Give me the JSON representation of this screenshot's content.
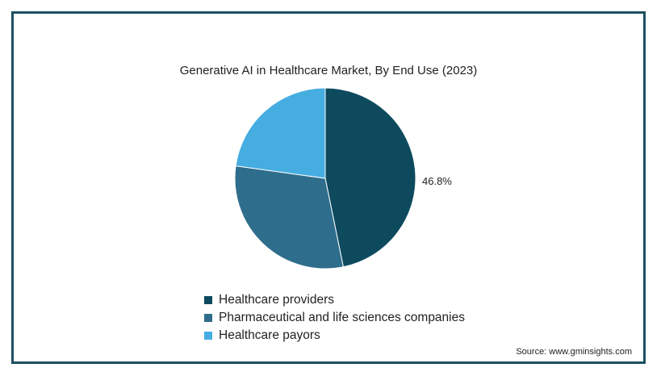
{
  "chart_data": {
    "type": "pie",
    "title": "Generative AI in Healthcare Market, By End Use (2023)",
    "series": [
      {
        "name": "Healthcare providers",
        "value": 46.8,
        "color": "#0d4a5e",
        "label": "46.8%"
      },
      {
        "name": "Pharmaceutical and life sciences companies",
        "value": 30.4,
        "color": "#2f6d8c",
        "label": ""
      },
      {
        "name": "Healthcare payors",
        "value": 22.8,
        "color": "#45ade0",
        "label": ""
      }
    ],
    "legend_position": "bottom",
    "source": "Source: www.gminsights.com"
  }
}
